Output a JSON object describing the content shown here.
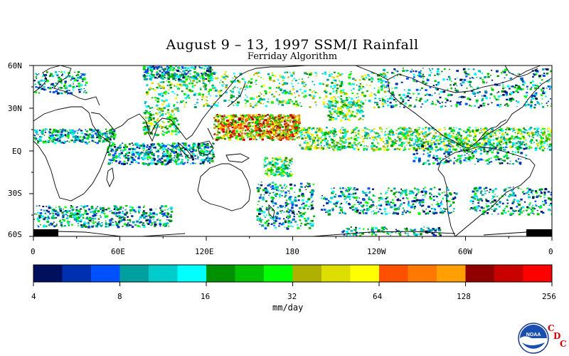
{
  "title": "August 9 – 13, 1997 SSM/I Rainfall",
  "subtitle": "Ferriday Algorithm",
  "lat_labels": [
    "60N",
    "30N",
    "EQ",
    "30S",
    "60S"
  ],
  "lon_labels": [
    "0",
    "60E",
    "120E",
    "180",
    "120W",
    "60W",
    "0"
  ],
  "colorbar": {
    "tick_labels": [
      "4",
      "8",
      "16",
      "32",
      "64",
      "128",
      "256"
    ],
    "units": "mm/day",
    "colors": [
      "#00105f",
      "#0030b0",
      "#0050ff",
      "#00a0a0",
      "#00cccc",
      "#00ffff",
      "#009000",
      "#00c000",
      "#00ff00",
      "#b0b000",
      "#dddd00",
      "#ffff00",
      "#ff5000",
      "#ff7800",
      "#ffa000",
      "#900000",
      "#c80000",
      "#ff0000"
    ]
  },
  "logo": {
    "text": "NOAA",
    "letters": [
      "C",
      "D",
      "C"
    ]
  }
}
